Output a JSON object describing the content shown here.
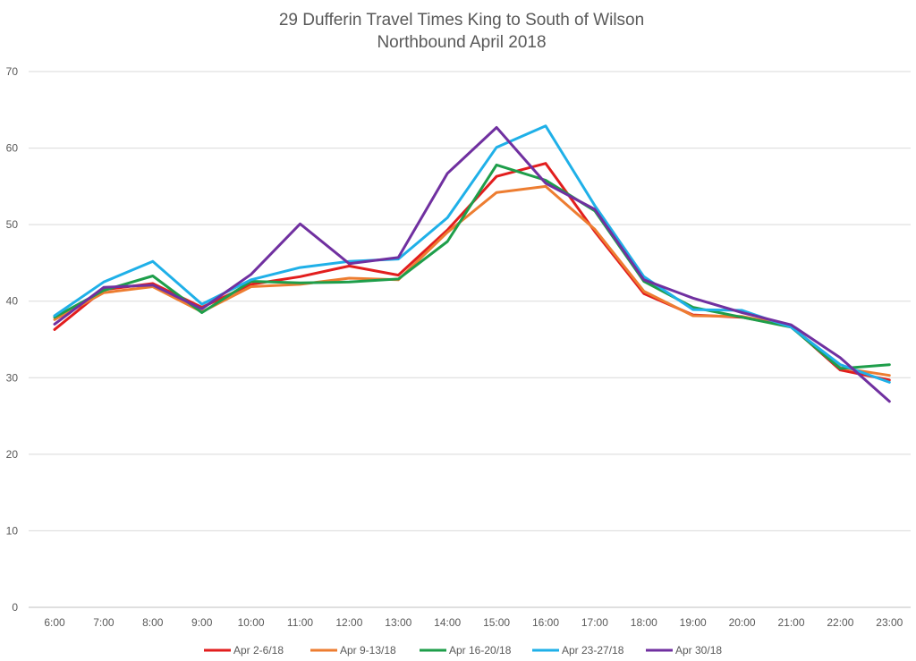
{
  "chart_data": {
    "type": "line",
    "title": "29 Dufferin Travel Times King to South of Wilson",
    "subtitle": "Northbound  April 2018",
    "xlabel": "",
    "ylabel": "",
    "categories": [
      "6:00",
      "7:00",
      "8:00",
      "9:00",
      "10:00",
      "11:00",
      "12:00",
      "13:00",
      "14:00",
      "15:00",
      "16:00",
      "17:00",
      "18:00",
      "19:00",
      "20:00",
      "21:00",
      "22:00",
      "23:00"
    ],
    "ylim": [
      0,
      70
    ],
    "yticks": [
      0,
      10,
      20,
      30,
      40,
      50,
      60,
      70
    ],
    "grid": true,
    "legend_position": "bottom",
    "series": [
      {
        "name": "Apr 2-6/18",
        "color": "#e21e1e",
        "values": [
          36.3,
          41.5,
          42.3,
          39.2,
          42.2,
          43.2,
          44.6,
          43.4,
          49.3,
          56.3,
          58.0,
          49.1,
          41.0,
          38.2,
          37.9,
          36.7,
          31.0,
          29.7
        ]
      },
      {
        "name": "Apr 9-13/18",
        "color": "#ed7d31",
        "values": [
          37.6,
          41.1,
          41.9,
          38.6,
          41.9,
          42.2,
          43.0,
          42.8,
          49.0,
          54.2,
          55.0,
          49.4,
          41.3,
          38.1,
          38.0,
          36.8,
          31.3,
          30.3
        ]
      },
      {
        "name": "Apr 16-20/18",
        "color": "#1e9e4a",
        "values": [
          37.9,
          41.4,
          43.3,
          38.5,
          42.6,
          42.4,
          42.5,
          42.9,
          47.8,
          57.8,
          55.8,
          51.8,
          42.6,
          39.2,
          37.9,
          36.6,
          31.2,
          31.7
        ]
      },
      {
        "name": "Apr 23-27/18",
        "color": "#1fb0e8",
        "values": [
          38.1,
          42.5,
          45.2,
          39.6,
          42.8,
          44.4,
          45.2,
          45.5,
          50.9,
          60.1,
          62.9,
          52.5,
          43.2,
          38.9,
          38.8,
          36.6,
          31.7,
          29.4
        ]
      },
      {
        "name": "Apr 30/18",
        "color": "#7030a0",
        "values": [
          37.0,
          41.8,
          42.1,
          39.0,
          43.5,
          50.1,
          44.9,
          45.7,
          56.7,
          62.7,
          55.4,
          52.0,
          42.8,
          40.4,
          38.5,
          36.9,
          32.6,
          26.9
        ]
      }
    ]
  }
}
